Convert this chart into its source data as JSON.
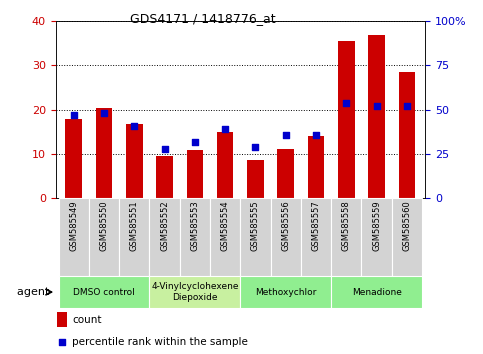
{
  "title": "GDS4171 / 1418776_at",
  "samples": [
    "GSM585549",
    "GSM585550",
    "GSM585551",
    "GSM585552",
    "GSM585553",
    "GSM585554",
    "GSM585555",
    "GSM585556",
    "GSM585557",
    "GSM585558",
    "GSM585559",
    "GSM585560"
  ],
  "count_values": [
    18.0,
    20.5,
    16.7,
    9.5,
    11.0,
    15.0,
    8.7,
    11.2,
    14.0,
    35.5,
    37.0,
    28.5
  ],
  "percentile_values": [
    47,
    48,
    41,
    28,
    32,
    39,
    29,
    36,
    36,
    54,
    52,
    52
  ],
  "ylim_left": [
    0,
    40
  ],
  "ylim_right": [
    0,
    100
  ],
  "yticks_left": [
    0,
    10,
    20,
    30,
    40
  ],
  "yticks_right": [
    0,
    25,
    50,
    75,
    100
  ],
  "ytick_labels_right": [
    "0",
    "25",
    "50",
    "75",
    "100%"
  ],
  "bar_color": "#cc0000",
  "dot_color": "#0000cc",
  "plot_bg": "#ffffff",
  "sample_cell_color": "#d3d3d3",
  "agent_groups": [
    {
      "label": "DMSO control",
      "start": 0,
      "end": 2,
      "color": "#90ee90"
    },
    {
      "label": "4-Vinylcyclohexene\nDiepoxide",
      "start": 3,
      "end": 5,
      "color": "#c8f0a0"
    },
    {
      "label": "Methoxychlor",
      "start": 6,
      "end": 8,
      "color": "#90ee90"
    },
    {
      "label": "Menadione",
      "start": 9,
      "end": 11,
      "color": "#90ee90"
    }
  ],
  "legend_count_label": "count",
  "legend_pct_label": "percentile rank within the sample",
  "agent_label": "agent",
  "bar_color_red": "#cc0000",
  "dot_color_blue": "#0000cc"
}
